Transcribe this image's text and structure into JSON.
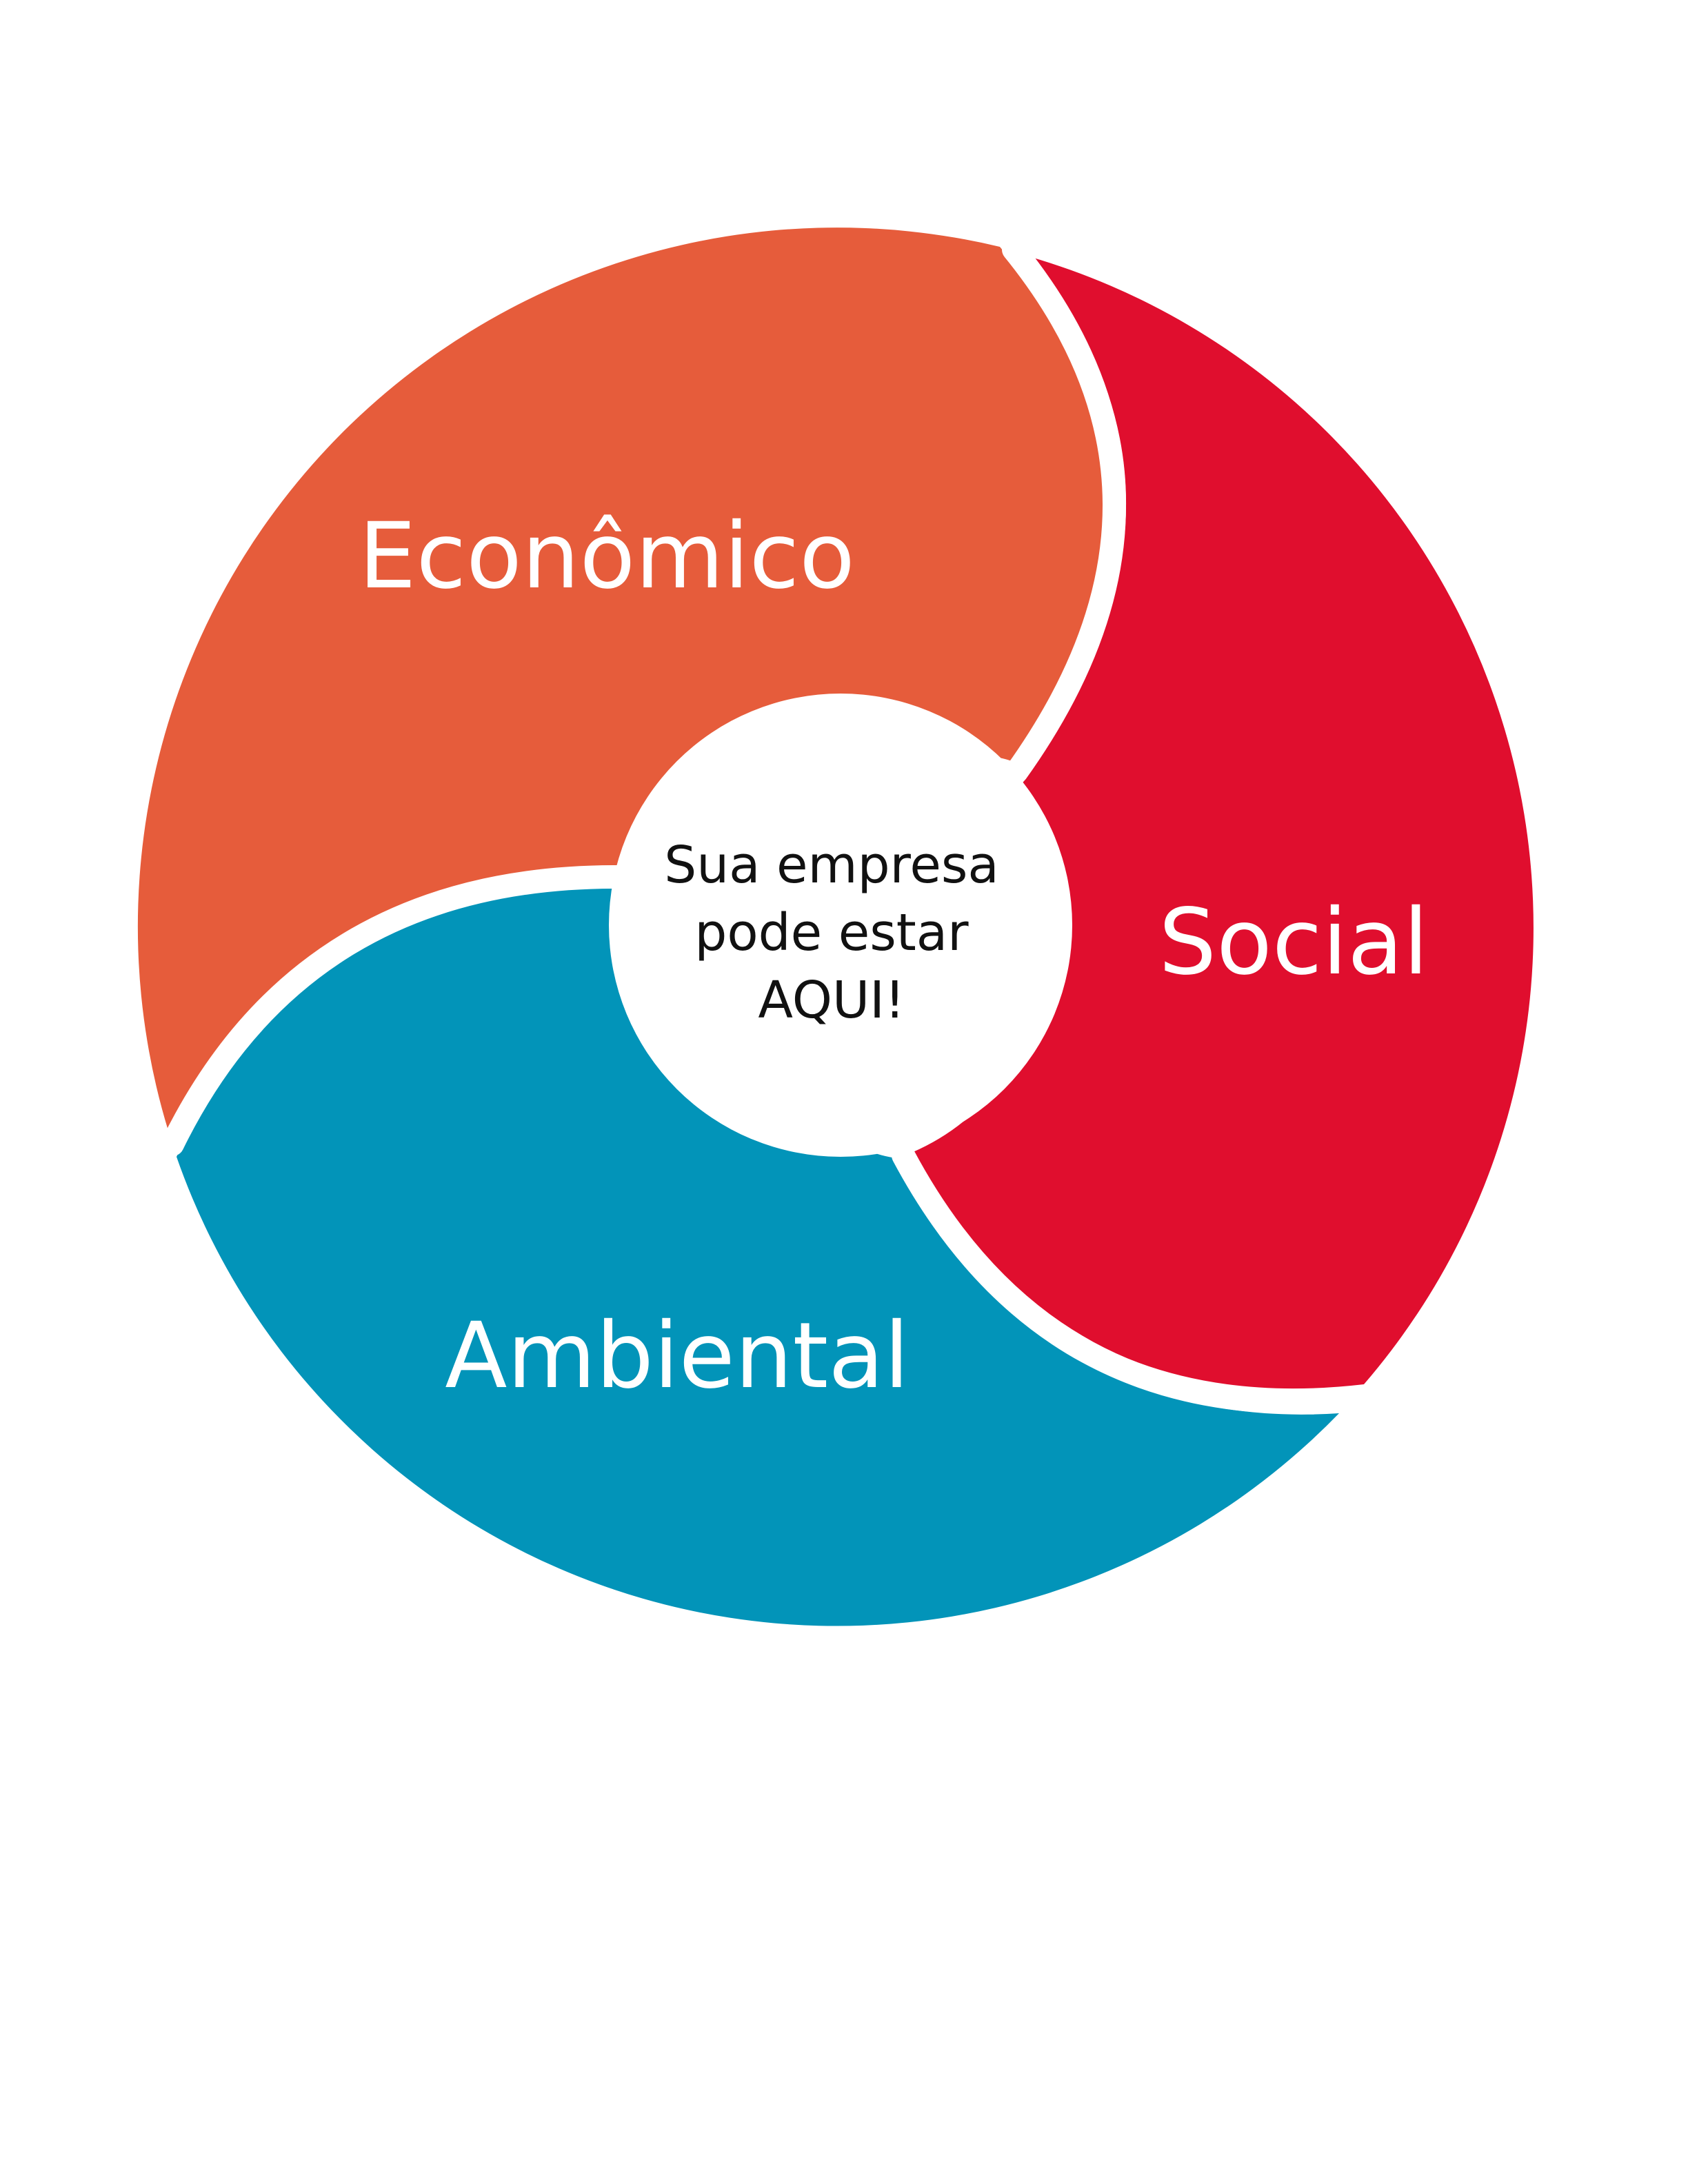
{
  "diagram": {
    "segments": {
      "economico": {
        "label": "Econômico",
        "color": "#E65C3B"
      },
      "social": {
        "label": "Social",
        "color": "#E00E2E"
      },
      "ambiental": {
        "label": "Ambiental",
        "color": "#0294B9"
      }
    },
    "center": {
      "line1": "Sua empresa",
      "line2": "pode estar",
      "line3": "AQUI!",
      "color": "#FFFFFF"
    },
    "separator_color": "#FFFFFF"
  }
}
